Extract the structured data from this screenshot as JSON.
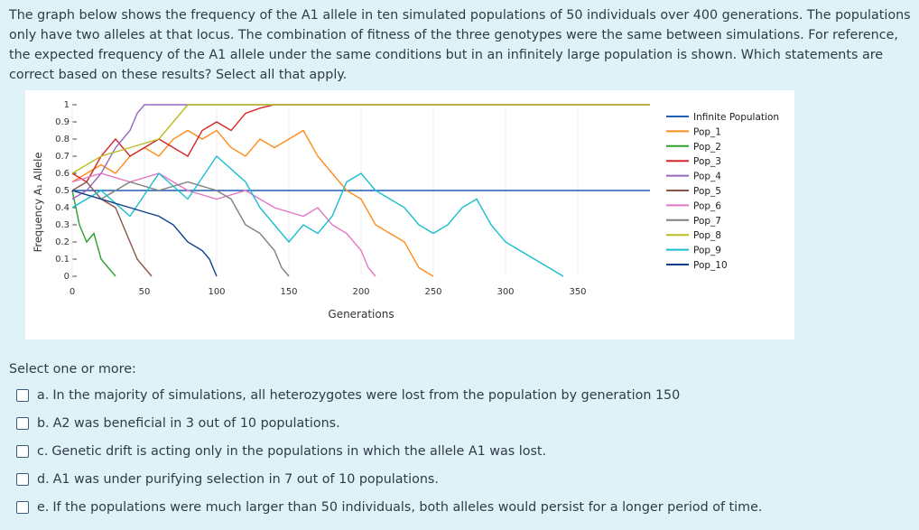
{
  "question": {
    "text": "The graph below shows the frequency of the A1 allele in ten simulated populations of 50 individuals over 400 generations. The populations only have two alleles at that locus. The combination of fitness of the three genotypes were the same between simulations. For reference, the expected frequency of the A1 allele under the same conditions but in an infinitely large population is shown. Which statements are correct based on these results? Select all that apply."
  },
  "prompt": "Select one or more:",
  "options": [
    {
      "letter": "a.",
      "text": "In the majority of simulations, all heterozygotes were lost from the population by generation 150"
    },
    {
      "letter": "b.",
      "text": "A2 was beneficial in 3 out of 10 populations."
    },
    {
      "letter": "c.",
      "text": "Genetic drift is acting only in the populations in which the allele A1 was lost."
    },
    {
      "letter": "d.",
      "text": "A1 was under purifying selection in 7 out of 10 populations."
    },
    {
      "letter": "e.",
      "text": "If the populations were much larger than 50 individuals, both alleles would persist for a longer period of time."
    }
  ],
  "chart_data": {
    "type": "line",
    "xlabel": "Generations",
    "ylabel": "Frequency A₁ Allele",
    "xlim": [
      0,
      400
    ],
    "ylim": [
      0,
      1
    ],
    "x_ticks": [
      "0",
      "50",
      "100",
      "150",
      "200",
      "250",
      "300",
      "350"
    ],
    "y_ticks": [
      "0",
      "0.1",
      "0.2",
      "0.3",
      "0.4",
      "0.5",
      "0.6",
      "0.7",
      "0.8",
      "0.9",
      "1"
    ],
    "legend_position": "right",
    "series": [
      {
        "name": "Infinite Population",
        "color": "#1f5fb4",
        "points": [
          [
            0,
            0.5
          ],
          [
            400,
            0.5
          ]
        ]
      },
      {
        "name": "Pop_1",
        "color": "#ff8c1a",
        "points": [
          [
            0,
            0.55
          ],
          [
            10,
            0.6
          ],
          [
            20,
            0.65
          ],
          [
            30,
            0.6
          ],
          [
            40,
            0.7
          ],
          [
            50,
            0.75
          ],
          [
            60,
            0.7
          ],
          [
            70,
            0.8
          ],
          [
            80,
            0.85
          ],
          [
            90,
            0.8
          ],
          [
            100,
            0.85
          ],
          [
            110,
            0.75
          ],
          [
            120,
            0.7
          ],
          [
            130,
            0.8
          ],
          [
            140,
            0.75
          ],
          [
            150,
            0.8
          ],
          [
            160,
            0.85
          ],
          [
            170,
            0.7
          ],
          [
            180,
            0.6
          ],
          [
            190,
            0.5
          ],
          [
            200,
            0.45
          ],
          [
            210,
            0.3
          ],
          [
            220,
            0.25
          ],
          [
            230,
            0.2
          ],
          [
            240,
            0.05
          ],
          [
            250,
            0
          ]
        ]
      },
      {
        "name": "Pop_2",
        "color": "#2ca02c",
        "points": [
          [
            0,
            0.5
          ],
          [
            5,
            0.3
          ],
          [
            10,
            0.2
          ],
          [
            15,
            0.25
          ],
          [
            20,
            0.1
          ],
          [
            25,
            0.05
          ],
          [
            30,
            0
          ]
        ]
      },
      {
        "name": "Pop_3",
        "color": "#d62728",
        "points": [
          [
            0,
            0.6
          ],
          [
            10,
            0.55
          ],
          [
            20,
            0.7
          ],
          [
            30,
            0.8
          ],
          [
            40,
            0.7
          ],
          [
            50,
            0.75
          ],
          [
            60,
            0.8
          ],
          [
            70,
            0.75
          ],
          [
            80,
            0.7
          ],
          [
            90,
            0.85
          ],
          [
            100,
            0.9
          ],
          [
            110,
            0.85
          ],
          [
            120,
            0.95
          ],
          [
            130,
            0.98
          ],
          [
            140,
            1
          ],
          [
            400,
            1
          ]
        ]
      },
      {
        "name": "Pop_4",
        "color": "#9467bd",
        "points": [
          [
            0,
            0.45
          ],
          [
            10,
            0.5
          ],
          [
            20,
            0.6
          ],
          [
            30,
            0.75
          ],
          [
            40,
            0.85
          ],
          [
            45,
            0.95
          ],
          [
            50,
            1
          ],
          [
            400,
            1
          ]
        ]
      },
      {
        "name": "Pop_5",
        "color": "#8c564b",
        "points": [
          [
            0,
            0.5
          ],
          [
            10,
            0.55
          ],
          [
            20,
            0.45
          ],
          [
            30,
            0.4
          ],
          [
            35,
            0.3
          ],
          [
            40,
            0.2
          ],
          [
            45,
            0.1
          ],
          [
            50,
            0.05
          ],
          [
            55,
            0
          ]
        ]
      },
      {
        "name": "Pop_6",
        "color": "#e377c2",
        "points": [
          [
            0,
            0.55
          ],
          [
            20,
            0.6
          ],
          [
            40,
            0.55
          ],
          [
            60,
            0.6
          ],
          [
            80,
            0.5
          ],
          [
            100,
            0.45
          ],
          [
            120,
            0.5
          ],
          [
            140,
            0.4
          ],
          [
            160,
            0.35
          ],
          [
            170,
            0.4
          ],
          [
            180,
            0.3
          ],
          [
            190,
            0.25
          ],
          [
            200,
            0.15
          ],
          [
            205,
            0.05
          ],
          [
            210,
            0
          ]
        ]
      },
      {
        "name": "Pop_7",
        "color": "#7f7f7f",
        "points": [
          [
            0,
            0.5
          ],
          [
            20,
            0.45
          ],
          [
            40,
            0.55
          ],
          [
            60,
            0.5
          ],
          [
            80,
            0.55
          ],
          [
            100,
            0.5
          ],
          [
            110,
            0.45
          ],
          [
            120,
            0.3
          ],
          [
            130,
            0.25
          ],
          [
            140,
            0.15
          ],
          [
            145,
            0.05
          ],
          [
            150,
            0
          ]
        ]
      },
      {
        "name": "Pop_8",
        "color": "#bcbd22",
        "points": [
          [
            0,
            0.6
          ],
          [
            20,
            0.7
          ],
          [
            40,
            0.75
          ],
          [
            60,
            0.8
          ],
          [
            70,
            0.9
          ],
          [
            75,
            0.95
          ],
          [
            80,
            1
          ],
          [
            400,
            1
          ]
        ]
      },
      {
        "name": "Pop_9",
        "color": "#17becf",
        "points": [
          [
            0,
            0.4
          ],
          [
            20,
            0.5
          ],
          [
            40,
            0.35
          ],
          [
            60,
            0.6
          ],
          [
            80,
            0.45
          ],
          [
            100,
            0.7
          ],
          [
            120,
            0.55
          ],
          [
            130,
            0.4
          ],
          [
            140,
            0.3
          ],
          [
            150,
            0.2
          ],
          [
            160,
            0.3
          ],
          [
            170,
            0.25
          ],
          [
            180,
            0.35
          ],
          [
            190,
            0.55
          ],
          [
            200,
            0.6
          ],
          [
            210,
            0.5
          ],
          [
            220,
            0.45
          ],
          [
            230,
            0.4
          ],
          [
            240,
            0.3
          ],
          [
            250,
            0.25
          ],
          [
            260,
            0.3
          ],
          [
            270,
            0.4
          ],
          [
            280,
            0.45
          ],
          [
            290,
            0.3
          ],
          [
            300,
            0.2
          ],
          [
            310,
            0.15
          ],
          [
            320,
            0.1
          ],
          [
            330,
            0.05
          ],
          [
            340,
            0
          ]
        ]
      },
      {
        "name": "Pop_10",
        "color": "#0d3f8a",
        "points": [
          [
            0,
            0.5
          ],
          [
            20,
            0.45
          ],
          [
            40,
            0.4
          ],
          [
            60,
            0.35
          ],
          [
            70,
            0.3
          ],
          [
            80,
            0.2
          ],
          [
            90,
            0.15
          ],
          [
            95,
            0.1
          ],
          [
            100,
            0
          ]
        ]
      }
    ]
  }
}
